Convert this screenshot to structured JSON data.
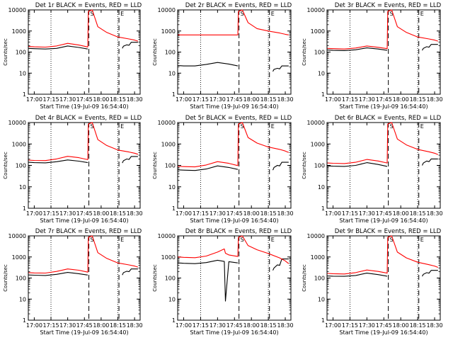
{
  "figure": {
    "start_time_label": "Start Time (19-Jul-09 16:54:40)",
    "ylabel": "Counts/sec",
    "x_tick_labels": [
      "17:00",
      "17:15",
      "17:30",
      "17:45",
      "18:00",
      "18:15",
      "18:30"
    ],
    "y_tick_labels": [
      "1",
      "10",
      "100",
      "1000",
      "10000"
    ],
    "colors": {
      "events": "#000000",
      "lld": "#ff0000",
      "axes": "#000000"
    }
  },
  "chart_data": [
    {
      "type": "line",
      "title": "Det 1r BLACK = Events, RED = LLD",
      "xlabel": "Start Time (19-Jul-09 16:54:40)",
      "ylabel": "Counts/sec",
      "xlim": [
        "16:54:40",
        "18:35"
      ],
      "ylim": [
        1,
        10000
      ],
      "yscale": "log",
      "grid": "dotted vertical at 17:15 and 18:15",
      "vertical_markers": [
        {
          "time": "17:49",
          "style": "dashed",
          "label": "S"
        },
        {
          "time": "18:16",
          "style": "dashed",
          "label": "E"
        }
      ],
      "x": [
        "16:55",
        "17:00",
        "17:10",
        "17:20",
        "17:30",
        "17:40",
        "17:48",
        "17:48.5",
        "17:52",
        "17:57",
        "18:05",
        "18:15",
        "18:25",
        "18:30",
        "18:33"
      ],
      "series": [
        {
          "name": "Events",
          "values": [
            150,
            145,
            140,
            150,
            195,
            165,
            140,
            null,
            null,
            null,
            null,
            null,
            null,
            null,
            null
          ],
          "segment2": {
            "x": [
              "18:19",
              "18:20",
              "18:23",
              "18:25",
              "18:27",
              "18:33"
            ],
            "values": [
              150,
              190,
              220,
              210,
              290,
              290
            ]
          }
        },
        {
          "name": "LLD",
          "values": [
            185,
            178,
            172,
            195,
            260,
            215,
            175,
            8500,
            10000,
            1600,
            850,
            520,
            420,
            370,
            330
          ]
        }
      ]
    },
    {
      "type": "line",
      "title": "Det 2r BLACK = Events, RED = LLD",
      "xlabel": "Start Time (19-Jul-09 16:54:40)",
      "ylabel": "Counts/sec",
      "xlim": [
        "16:54:40",
        "18:35"
      ],
      "ylim": [
        1,
        10000
      ],
      "yscale": "log",
      "grid": "dotted vertical at 17:15 and 18:15",
      "vertical_markers": [
        {
          "time": "17:49",
          "style": "dashed",
          "label": "S"
        },
        {
          "time": "18:16",
          "style": "dashed",
          "label": "E"
        }
      ],
      "x": [
        "16:55",
        "17:00",
        "17:10",
        "17:20",
        "17:30",
        "17:40",
        "17:48",
        "17:48.5",
        "17:52",
        "17:57",
        "18:05",
        "18:15",
        "18:25",
        "18:30",
        "18:33"
      ],
      "series": [
        {
          "name": "Events",
          "values": [
            23,
            22,
            22,
            26,
            32,
            27,
            22,
            null,
            null,
            null,
            null,
            null,
            null,
            null,
            null
          ],
          "segment2": {
            "x": [
              "18:19",
              "18:20",
              "18:23",
              "18:25",
              "18:27",
              "18:33"
            ],
            "values": [
              12,
              15,
              17,
              16,
              22,
              22
            ]
          }
        },
        {
          "name": "LLD",
          "values": [
            650,
            650,
            650,
            650,
            650,
            650,
            650,
            8500,
            10000,
            2500,
            1300,
            1000,
            800,
            700,
            650
          ]
        }
      ]
    },
    {
      "type": "line",
      "title": "Det 3r BLACK = Events, RED = LLD",
      "xlabel": "Start Time (19-Jul-09 16:54:40)",
      "ylabel": "Counts/sec",
      "xlim": [
        "16:54:40",
        "18:35"
      ],
      "ylim": [
        1,
        10000
      ],
      "yscale": "log",
      "grid": "dotted vertical at 17:15 and 18:15",
      "vertical_markers": [
        {
          "time": "17:49",
          "style": "dashed",
          "label": "S"
        },
        {
          "time": "18:16",
          "style": "dashed",
          "label": "E"
        }
      ],
      "x": [
        "16:55",
        "17:00",
        "17:10",
        "17:20",
        "17:30",
        "17:40",
        "17:48",
        "17:48.5",
        "17:52",
        "17:57",
        "18:05",
        "18:15",
        "18:25",
        "18:30",
        "18:33"
      ],
      "series": [
        {
          "name": "Events",
          "values": [
            125,
            120,
            118,
            128,
            158,
            140,
            120,
            null,
            null,
            null,
            null,
            null,
            null,
            null,
            null
          ],
          "segment2": {
            "x": [
              "18:19",
              "18:20",
              "18:23",
              "18:25",
              "18:27",
              "18:33"
            ],
            "values": [
              120,
              150,
              180,
              170,
              230,
              230
            ]
          }
        },
        {
          "name": "LLD",
          "values": [
            150,
            145,
            140,
            155,
            195,
            168,
            145,
            8500,
            10000,
            1600,
            850,
            520,
            420,
            370,
            330
          ]
        }
      ]
    },
    {
      "type": "line",
      "title": "Det 4r BLACK = Events, RED = LLD",
      "xlabel": "Start Time (19-Jul-09 16:54:40)",
      "ylabel": "Counts/sec",
      "xlim": [
        "16:54:40",
        "18:35"
      ],
      "ylim": [
        1,
        10000
      ],
      "yscale": "log",
      "grid": "dotted vertical at 17:15 and 18:15",
      "vertical_markers": [
        {
          "time": "17:49",
          "style": "dashed",
          "label": "S"
        },
        {
          "time": "18:16",
          "style": "dashed",
          "label": "E"
        }
      ],
      "x": [
        "16:55",
        "17:00",
        "17:10",
        "17:20",
        "17:30",
        "17:40",
        "17:48",
        "17:48.5",
        "17:52",
        "17:57",
        "18:05",
        "18:15",
        "18:25",
        "18:30",
        "18:33"
      ],
      "series": [
        {
          "name": "Events",
          "values": [
            140,
            135,
            132,
            148,
            180,
            158,
            135,
            null,
            null,
            null,
            null,
            null,
            null,
            null,
            null
          ],
          "segment2": {
            "x": [
              "18:19",
              "18:20",
              "18:23",
              "18:25",
              "18:27",
              "18:33"
            ],
            "values": [
              130,
              165,
              200,
              190,
              260,
              260
            ]
          }
        },
        {
          "name": "LLD",
          "values": [
            175,
            170,
            168,
            200,
            265,
            230,
            185,
            8500,
            10000,
            1600,
            850,
            520,
            420,
            370,
            330
          ]
        }
      ]
    },
    {
      "type": "line",
      "title": "Det 5r BLACK = Events, RED = LLD",
      "xlabel": "Start Time (19-Jul-09 16:54:40)",
      "ylabel": "Counts/sec",
      "xlim": [
        "16:54:40",
        "18:35"
      ],
      "ylim": [
        1,
        10000
      ],
      "yscale": "log",
      "grid": "dotted vertical at 17:15 and 18:15",
      "vertical_markers": [
        {
          "time": "17:49",
          "style": "dashed",
          "label": "S"
        },
        {
          "time": "18:16",
          "style": "dashed",
          "label": "E"
        }
      ],
      "x": [
        "16:55",
        "17:00",
        "17:10",
        "17:20",
        "17:30",
        "17:40",
        "17:48",
        "17:48.5",
        "17:52",
        "17:57",
        "18:05",
        "18:15",
        "18:25",
        "18:30",
        "18:33"
      ],
      "series": [
        {
          "name": "Events",
          "values": [
            62,
            60,
            58,
            68,
            95,
            80,
            65,
            null,
            null,
            null,
            null,
            null,
            null,
            null,
            null
          ],
          "segment2": {
            "x": [
              "18:19",
              "18:20",
              "18:23",
              "18:25",
              "18:27",
              "18:33"
            ],
            "values": [
              60,
              80,
              100,
              95,
              140,
              140
            ]
          }
        },
        {
          "name": "LLD",
          "values": [
            90,
            88,
            85,
            105,
            150,
            125,
            98,
            8500,
            10000,
            2000,
            1100,
            720,
            560,
            470,
            400
          ]
        }
      ]
    },
    {
      "type": "line",
      "title": "Det 6r BLACK = Events, RED = LLD",
      "xlabel": "Start Time (19-Jul-09 16:54:40)",
      "ylabel": "Counts/sec",
      "xlim": [
        "16:54:40",
        "18:35"
      ],
      "ylim": [
        1,
        10000
      ],
      "yscale": "log",
      "grid": "dotted vertical at 17:15 and 18:15",
      "vertical_markers": [
        {
          "time": "17:49",
          "style": "dashed",
          "label": "S"
        },
        {
          "time": "18:16",
          "style": "dashed",
          "label": "E"
        }
      ],
      "x": [
        "16:55",
        "17:00",
        "17:10",
        "17:20",
        "17:30",
        "17:40",
        "17:48",
        "17:48.5",
        "17:52",
        "17:57",
        "18:05",
        "18:15",
        "18:25",
        "18:30",
        "18:33"
      ],
      "series": [
        {
          "name": "Events",
          "values": [
            95,
            92,
            90,
            100,
            135,
            110,
            90,
            null,
            null,
            null,
            null,
            null,
            null,
            null,
            null
          ],
          "segment2": {
            "x": [
              "18:19",
              "18:20",
              "18:23",
              "18:25",
              "18:27",
              "18:33"
            ],
            "values": [
              100,
              130,
              160,
              150,
              200,
              200
            ]
          }
        },
        {
          "name": "LLD",
          "values": [
            130,
            126,
            122,
            140,
            190,
            160,
            130,
            8500,
            10000,
            1700,
            900,
            560,
            430,
            370,
            320
          ]
        }
      ]
    },
    {
      "type": "line",
      "title": "Det 7r BLACK = Events, RED = LLD",
      "xlabel": "Start Time (19-Jul-09 16:54:40)",
      "ylabel": "Counts/sec",
      "xlim": [
        "16:54:40",
        "18:35"
      ],
      "ylim": [
        1,
        10000
      ],
      "yscale": "log",
      "grid": "dotted vertical at 17:15 and 18:15",
      "vertical_markers": [
        {
          "time": "17:49",
          "style": "dashed",
          "label": "S"
        },
        {
          "time": "18:16",
          "style": "dashed",
          "label": "E"
        }
      ],
      "x": [
        "16:55",
        "17:00",
        "17:10",
        "17:20",
        "17:30",
        "17:40",
        "17:48",
        "17:48.5",
        "17:52",
        "17:57",
        "18:05",
        "18:15",
        "18:25",
        "18:30",
        "18:33"
      ],
      "series": [
        {
          "name": "Events",
          "values": [
            140,
            136,
            132,
            150,
            185,
            160,
            138,
            null,
            null,
            null,
            null,
            null,
            null,
            null,
            null
          ],
          "segment2": {
            "x": [
              "18:19",
              "18:20",
              "18:23",
              "18:25",
              "18:27",
              "18:33"
            ],
            "values": [
              140,
              180,
              210,
              200,
              270,
              270
            ]
          }
        },
        {
          "name": "LLD",
          "values": [
            180,
            175,
            172,
            205,
            270,
            235,
            190,
            8500,
            10000,
            1600,
            850,
            520,
            420,
            370,
            330
          ]
        }
      ]
    },
    {
      "type": "line",
      "title": "Det 8r BLACK = Events, RED = LLD",
      "xlabel": "Start Time (19-Jul-09 16:54:40)",
      "ylabel": "Counts/sec",
      "xlim": [
        "16:54:40",
        "18:35"
      ],
      "ylim": [
        1,
        10000
      ],
      "yscale": "log",
      "grid": "dotted vertical at 17:15 and 18:15",
      "vertical_markers": [
        {
          "time": "17:49",
          "style": "dashed",
          "label": "S"
        },
        {
          "time": "18:16",
          "style": "dashed",
          "label": "E"
        }
      ],
      "x": [
        "16:55",
        "17:00",
        "17:10",
        "17:20",
        "17:30",
        "17:36",
        "17:37",
        "17:40",
        "17:48",
        "17:48.5",
        "17:52",
        "17:57",
        "18:05",
        "18:15",
        "18:25",
        "18:30",
        "18:33"
      ],
      "series": [
        {
          "name": "Events",
          "values": [
            520,
            500,
            480,
            540,
            700,
            610,
            8,
            600,
            520,
            null,
            null,
            null,
            null,
            null,
            null,
            null,
            null
          ],
          "segment2": {
            "x": [
              "18:19",
              "18:20",
              "18:23",
              "18:25",
              "18:27",
              "18:33"
            ],
            "values": [
              230,
              300,
              420,
              400,
              800,
              800
            ]
          }
        },
        {
          "name": "LLD",
          "values": [
            1000,
            960,
            920,
            1100,
            1700,
            2400,
            1500,
            1250,
            1050,
            8500,
            10000,
            3500,
            2200,
            1450,
            900,
            650,
            480
          ]
        }
      ]
    },
    {
      "type": "line",
      "title": "Det 9r BLACK = Events, RED = LLD",
      "xlabel": "Start Time (19-Jul-09 16:54:40)",
      "ylabel": "Counts/sec",
      "xlim": [
        "16:54:40",
        "18:35"
      ],
      "ylim": [
        1,
        10000
      ],
      "yscale": "log",
      "grid": "dotted vertical at 17:15 and 18:15",
      "vertical_markers": [
        {
          "time": "17:49",
          "style": "dashed",
          "label": "S"
        },
        {
          "time": "18:16",
          "style": "dashed",
          "label": "E"
        }
      ],
      "x": [
        "16:55",
        "17:00",
        "17:10",
        "17:20",
        "17:30",
        "17:40",
        "17:48",
        "17:48.5",
        "17:52",
        "17:57",
        "18:05",
        "18:15",
        "18:25",
        "18:30",
        "18:33"
      ],
      "series": [
        {
          "name": "Events",
          "values": [
            125,
            122,
            120,
            132,
            170,
            145,
            122,
            null,
            null,
            null,
            null,
            null,
            null,
            null,
            null
          ],
          "segment2": {
            "x": [
              "18:19",
              "18:20",
              "18:23",
              "18:25",
              "18:27",
              "18:33"
            ],
            "values": [
              120,
              150,
              180,
              170,
              230,
              230
            ]
          }
        },
        {
          "name": "LLD",
          "values": [
            165,
            160,
            156,
            180,
            240,
            205,
            170,
            8500,
            10000,
            1700,
            900,
            560,
            430,
            370,
            320
          ]
        }
      ]
    }
  ]
}
